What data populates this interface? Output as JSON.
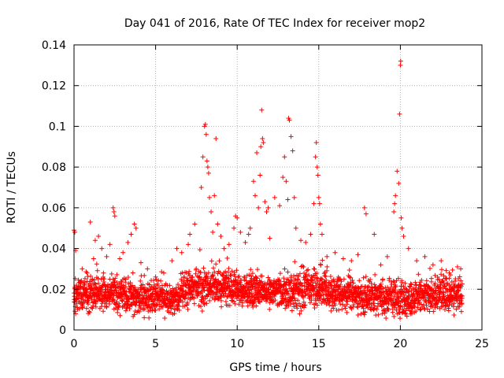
{
  "chart_data": {
    "type": "scatter",
    "title": "Day 041 of 2016, Rate Of TEC Index for receiver mop2",
    "xlabel": "GPS time / hours",
    "ylabel": "ROTI / TECUs",
    "xlim": [
      0,
      25
    ],
    "ylim": [
      0,
      0.14
    ],
    "xticks": [
      0,
      5,
      10,
      15,
      20,
      25
    ],
    "xtick_labels": [
      "0",
      "5",
      "10",
      "15",
      "20",
      "25"
    ],
    "yticks": [
      0,
      0.02,
      0.04,
      0.06,
      0.08,
      0.1,
      0.12,
      0.14
    ],
    "ytick_labels": [
      "0",
      "0.02",
      "0.04",
      "0.06",
      "0.08",
      "0.1",
      "0.12",
      "0.14"
    ],
    "grid": true,
    "marker": "+",
    "color": "#ff0000",
    "series": [
      {
        "name": "ROTI",
        "points": [
          [
            0.0,
            0.049
          ],
          [
            0.05,
            0.048
          ],
          [
            0.1,
            0.039
          ],
          [
            0.15,
            0.022
          ],
          [
            0.2,
            0.011
          ],
          [
            0.1,
            0.008
          ],
          [
            0.5,
            0.03
          ],
          [
            0.8,
            0.028
          ],
          [
            1.0,
            0.053
          ],
          [
            1.2,
            0.035
          ],
          [
            1.3,
            0.044
          ],
          [
            1.5,
            0.046
          ],
          [
            1.7,
            0.04
          ],
          [
            2.0,
            0.036
          ],
          [
            2.2,
            0.042
          ],
          [
            2.4,
            0.06
          ],
          [
            2.45,
            0.058
          ],
          [
            2.5,
            0.056
          ],
          [
            2.8,
            0.035
          ],
          [
            3.0,
            0.038
          ],
          [
            3.3,
            0.043
          ],
          [
            3.5,
            0.047
          ],
          [
            3.7,
            0.052
          ],
          [
            3.8,
            0.05
          ],
          [
            4.1,
            0.033
          ],
          [
            4.5,
            0.03
          ],
          [
            5.0,
            0.026
          ],
          [
            5.5,
            0.028
          ],
          [
            6.0,
            0.034
          ],
          [
            6.3,
            0.04
          ],
          [
            6.6,
            0.038
          ],
          [
            7.0,
            0.042
          ],
          [
            7.1,
            0.047
          ],
          [
            7.4,
            0.052
          ],
          [
            7.8,
            0.07
          ],
          [
            7.9,
            0.085
          ],
          [
            8.0,
            0.1
          ],
          [
            8.05,
            0.101
          ],
          [
            8.1,
            0.096
          ],
          [
            8.15,
            0.083
          ],
          [
            8.2,
            0.08
          ],
          [
            8.25,
            0.077
          ],
          [
            8.3,
            0.065
          ],
          [
            8.4,
            0.058
          ],
          [
            8.5,
            0.048
          ],
          [
            8.6,
            0.066
          ],
          [
            8.7,
            0.094
          ],
          [
            8.8,
            0.052
          ],
          [
            9.0,
            0.046
          ],
          [
            9.2,
            0.04
          ],
          [
            9.5,
            0.042
          ],
          [
            9.8,
            0.05
          ],
          [
            9.9,
            0.056
          ],
          [
            10.0,
            0.055
          ],
          [
            10.2,
            0.048
          ],
          [
            10.5,
            0.043
          ],
          [
            10.7,
            0.047
          ],
          [
            10.8,
            0.05
          ],
          [
            11.0,
            0.073
          ],
          [
            11.1,
            0.066
          ],
          [
            11.2,
            0.087
          ],
          [
            11.3,
            0.06
          ],
          [
            11.4,
            0.076
          ],
          [
            11.45,
            0.09
          ],
          [
            11.5,
            0.108
          ],
          [
            11.55,
            0.094
          ],
          [
            11.6,
            0.092
          ],
          [
            11.7,
            0.063
          ],
          [
            11.8,
            0.058
          ],
          [
            11.9,
            0.06
          ],
          [
            12.0,
            0.045
          ],
          [
            12.3,
            0.065
          ],
          [
            12.6,
            0.061
          ],
          [
            12.8,
            0.075
          ],
          [
            12.9,
            0.085
          ],
          [
            13.0,
            0.073
          ],
          [
            13.1,
            0.064
          ],
          [
            13.15,
            0.104
          ],
          [
            13.2,
            0.103
          ],
          [
            13.3,
            0.095
          ],
          [
            13.4,
            0.088
          ],
          [
            13.5,
            0.065
          ],
          [
            13.6,
            0.05
          ],
          [
            13.9,
            0.044
          ],
          [
            14.2,
            0.043
          ],
          [
            14.5,
            0.047
          ],
          [
            14.7,
            0.062
          ],
          [
            14.8,
            0.085
          ],
          [
            14.85,
            0.092
          ],
          [
            14.9,
            0.08
          ],
          [
            14.95,
            0.076
          ],
          [
            15.0,
            0.065
          ],
          [
            15.05,
            0.062
          ],
          [
            15.1,
            0.052
          ],
          [
            15.2,
            0.047
          ],
          [
            15.5,
            0.036
          ],
          [
            16.0,
            0.038
          ],
          [
            16.5,
            0.035
          ],
          [
            17.0,
            0.034
          ],
          [
            17.4,
            0.037
          ],
          [
            17.8,
            0.06
          ],
          [
            17.9,
            0.057
          ],
          [
            18.4,
            0.047
          ],
          [
            18.8,
            0.032
          ],
          [
            19.2,
            0.036
          ],
          [
            19.6,
            0.058
          ],
          [
            19.65,
            0.062
          ],
          [
            19.7,
            0.066
          ],
          [
            19.8,
            0.078
          ],
          [
            19.9,
            0.072
          ],
          [
            19.95,
            0.106
          ],
          [
            20.0,
            0.13
          ],
          [
            20.02,
            0.132
          ],
          [
            20.05,
            0.055
          ],
          [
            20.1,
            0.05
          ],
          [
            20.2,
            0.046
          ],
          [
            20.5,
            0.04
          ],
          [
            21.0,
            0.034
          ],
          [
            21.5,
            0.036
          ],
          [
            22.0,
            0.032
          ],
          [
            22.5,
            0.034
          ],
          [
            23.0,
            0.028
          ],
          [
            23.5,
            0.031
          ],
          [
            23.7,
            0.03
          ]
        ]
      }
    ],
    "noise_band": {
      "x_range": [
        0,
        23.8
      ],
      "y_center": 0.0165,
      "y_spread": 0.0075
    }
  }
}
